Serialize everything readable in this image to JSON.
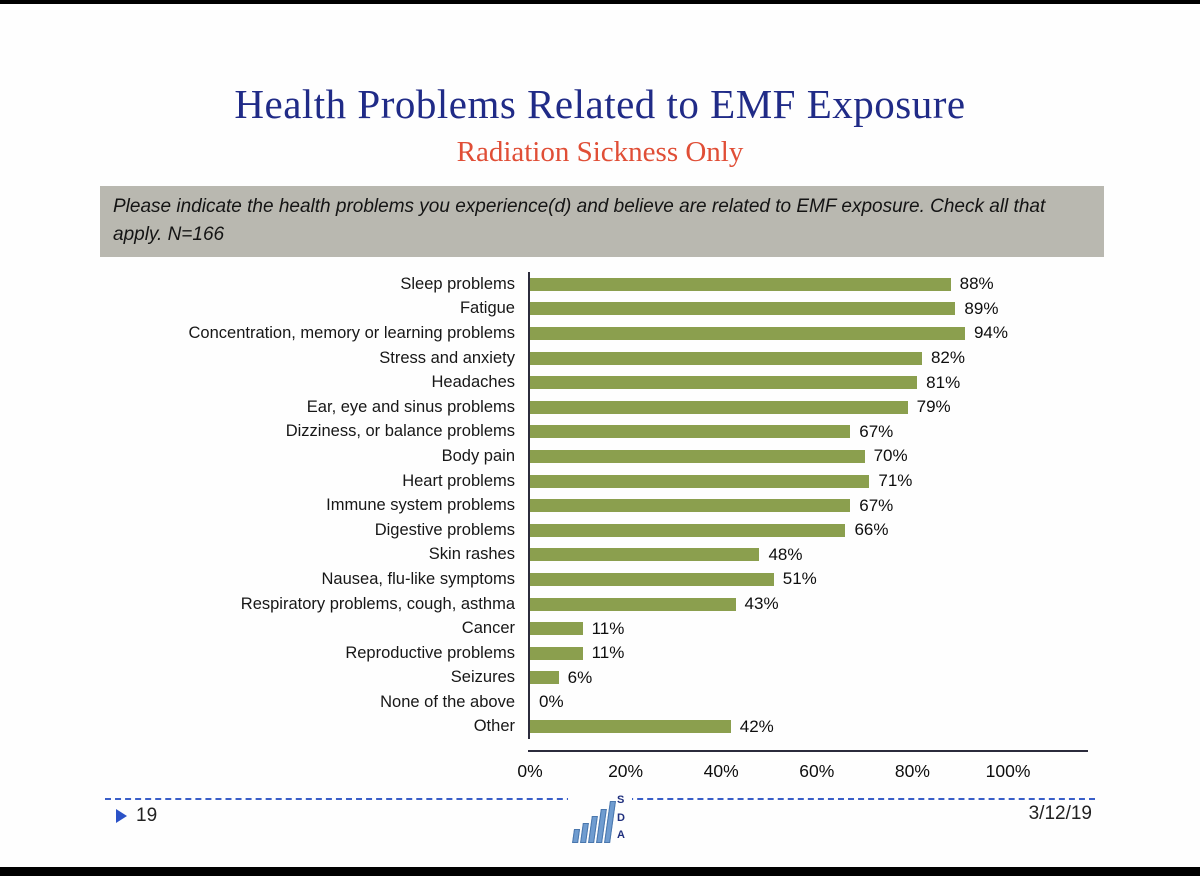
{
  "slide": {
    "title": "Health Problems Related to EMF Exposure",
    "subtitle": "Radiation Sickness Only",
    "prompt": "Please indicate the health problems you experience(d) and believe are related to EMF exposure. Check all that apply. N=166",
    "footer": {
      "page_number": "19",
      "date": "3/12/19",
      "logo_letters": [
        "S",
        "D",
        "A"
      ]
    }
  },
  "colors": {
    "title": "#202b87",
    "subtitle": "#e04e36",
    "bar": "#8b9f4e",
    "prompt_bg": "#b9b8b0"
  },
  "chart_data": {
    "type": "bar",
    "orientation": "horizontal",
    "title": "Health Problems Related to EMF Exposure — Radiation Sickness Only",
    "xlabel": "",
    "ylabel": "",
    "xlim": [
      0,
      100
    ],
    "grid": false,
    "legend": false,
    "categories": [
      "Sleep problems",
      "Fatigue",
      "Concentration, memory or learning problems",
      "Stress and anxiety",
      "Headaches",
      "Ear, eye and sinus problems",
      "Dizziness, or balance problems",
      "Body pain",
      "Heart problems",
      "Immune system problems",
      "Digestive problems",
      "Skin rashes",
      "Nausea, flu-like symptoms",
      "Respiratory problems, cough, asthma",
      "Cancer",
      "Reproductive problems",
      "Seizures",
      "None of the above",
      "Other"
    ],
    "values": [
      88,
      89,
      94,
      82,
      81,
      79,
      67,
      70,
      71,
      67,
      66,
      48,
      51,
      43,
      11,
      11,
      6,
      0,
      42
    ],
    "value_labels": [
      "88%",
      "89%",
      "94%",
      "82%",
      "81%",
      "79%",
      "67%",
      "70%",
      "71%",
      "67%",
      "66%",
      "48%",
      "51%",
      "43%",
      "11%",
      "11%",
      "6%",
      "0%",
      "42%"
    ],
    "x_ticks": [
      "0%",
      "20%",
      "40%",
      "60%",
      "80%",
      "100%"
    ],
    "x_tick_values": [
      0,
      20,
      40,
      60,
      80,
      100
    ]
  }
}
